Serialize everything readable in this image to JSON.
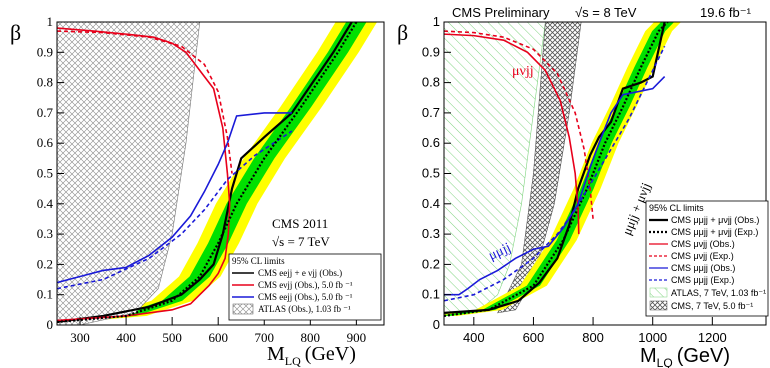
{
  "chart_data": [
    {
      "type": "line",
      "panel": "left",
      "xlabel_main": "M",
      "xlabel_sub": "LQ",
      "xlabel_unit": "(GeV)",
      "ylabel": "β",
      "xlim": [
        250,
        960
      ],
      "ylim": [
        0,
        1
      ],
      "xticks": [
        "300",
        "400",
        "500",
        "600",
        "700",
        "800",
        "900"
      ],
      "yticks": [
        "0",
        "0.1",
        "0.2",
        "0.3",
        "0.4",
        "0.5",
        "0.6",
        "0.7",
        "0.8",
        "0.9",
        "1"
      ],
      "annotation_line1": "CMS 2011",
      "annotation_line2": "√s = 7 TeV",
      "legend_title": "95% CL limits",
      "legend": [
        "CMS eejj + e νjj (Obs.)",
        "CMS eνjj (Obs.), 5.0 fb ⁻¹",
        "CMS eejj (Obs.), 5.0 fb ⁻¹",
        "ATLAS (Obs.), 1.03 fb ⁻¹"
      ],
      "series": [
        {
          "name": "CMS eejj + e νjj (Obs.)",
          "color": "#000000",
          "x": [
            250,
            350,
            450,
            520,
            560,
            590,
            610,
            630,
            650,
            700,
            760,
            850,
            890
          ],
          "y": [
            0.01,
            0.03,
            0.06,
            0.1,
            0.15,
            0.2,
            0.3,
            0.45,
            0.55,
            0.62,
            0.7,
            0.9,
            1.0
          ]
        },
        {
          "name": "CMS eνjj (Obs.), 5.0 fb ⁻¹",
          "color": "#e8001b",
          "x": [
            250,
            330,
            400,
            460,
            500,
            530,
            550,
            565,
            590,
            610,
            620,
            625,
            622,
            615,
            600,
            580,
            560,
            540,
            500,
            400,
            300,
            250
          ],
          "y": [
            0.98,
            0.97,
            0.96,
            0.95,
            0.93,
            0.9,
            0.86,
            0.83,
            0.78,
            0.65,
            0.5,
            0.4,
            0.3,
            0.22,
            0.17,
            0.13,
            0.1,
            0.07,
            0.05,
            0.03,
            0.02,
            0.015
          ]
        },
        {
          "name": "CMS eejj (Obs.), 5.0 fb ⁻¹",
          "color": "#1a1ad8",
          "x": [
            250,
            300,
            350,
            400,
            450,
            500,
            540,
            570,
            600,
            620,
            640,
            700,
            760
          ],
          "y": [
            0.14,
            0.16,
            0.18,
            0.19,
            0.23,
            0.29,
            0.36,
            0.44,
            0.53,
            0.6,
            0.69,
            0.7,
            0.7
          ]
        },
        {
          "name": "CMS eνjj (Exp.)",
          "color": "#e8001b",
          "dashed": true,
          "x": [
            250,
            350,
            450,
            520,
            570,
            600,
            620,
            630
          ],
          "y": [
            0.97,
            0.965,
            0.95,
            0.92,
            0.86,
            0.77,
            0.62,
            0.5
          ]
        },
        {
          "name": "CMS eejj (Exp.)",
          "color": "#1a1ad8",
          "dashed": true,
          "x": [
            250,
            350,
            450,
            520,
            570,
            620,
            680,
            760
          ],
          "y": [
            0.12,
            0.15,
            0.22,
            0.3,
            0.38,
            0.48,
            0.56,
            0.64
          ]
        },
        {
          "name": "CMS eejj + e νjj (Exp.)",
          "color": "#000000",
          "dashed": true,
          "x": [
            250,
            400,
            500,
            560,
            600,
            640,
            700,
            780,
            860,
            900
          ],
          "y": [
            0.01,
            0.03,
            0.08,
            0.16,
            0.27,
            0.4,
            0.55,
            0.72,
            0.9,
            1.0
          ]
        }
      ]
    },
    {
      "type": "line",
      "panel": "right",
      "title_left": "CMS Preliminary",
      "title_mid": "√s = 8 TeV",
      "title_right": "19.6 fb⁻¹",
      "xlabel_main": "M",
      "xlabel_sub": "LQ",
      "xlabel_unit": "(GeV)",
      "ylabel": "β",
      "xlim": [
        300,
        1380
      ],
      "ylim": [
        0,
        1
      ],
      "xticks": [
        "400",
        "600",
        "800",
        "1000",
        "1200"
      ],
      "yticks": [
        "0",
        "0.1",
        "0.2",
        "0.3",
        "0.4",
        "0.5",
        "0.6",
        "0.7",
        "0.8",
        "0.9",
        "1"
      ],
      "label_muvjj": "μνjj",
      "label_mumujj": "μμjj",
      "label_combined": "μμjj + μνjj",
      "legend_title": "95% CL limits",
      "legend": [
        "CMS μμjj + μνjj (Obs.)",
        "CMS μμjj + μνjj (Exp.)",
        "CMS μνjj (Obs.)",
        "CMS μνjj (Exp.)",
        "CMS μμjj (Obs.)",
        "CMS μμjj (Exp.)",
        "ATLAS, 7 TeV, 1.03 fb⁻¹",
        "CMS, 7 TeV, 5.0 fb⁻¹"
      ],
      "series": [
        {
          "name": "CMS μμjj + μνjj (Obs.)",
          "color": "#000000",
          "x": [
            300,
            450,
            550,
            620,
            680,
            720,
            750,
            790,
            820,
            860,
            900,
            960,
            1000,
            1040
          ],
          "y": [
            0.04,
            0.05,
            0.08,
            0.14,
            0.22,
            0.33,
            0.45,
            0.56,
            0.62,
            0.67,
            0.78,
            0.8,
            0.82,
            1.0
          ]
        },
        {
          "name": "CMS μμjj + μνjj (Exp.)",
          "color": "#000000",
          "dashed": true,
          "x": [
            300,
            450,
            600,
            700,
            780,
            840,
            900,
            960,
            1020,
            1050
          ],
          "y": [
            0.03,
            0.05,
            0.13,
            0.28,
            0.45,
            0.6,
            0.72,
            0.85,
            0.97,
            1.0
          ]
        },
        {
          "name": "CMS μνjj (Obs.)",
          "color": "#e8001b",
          "x": [
            300,
            400,
            500,
            580,
            640,
            690,
            720,
            740,
            750,
            752
          ],
          "y": [
            0.96,
            0.955,
            0.94,
            0.9,
            0.84,
            0.74,
            0.62,
            0.5,
            0.38,
            0.3
          ]
        },
        {
          "name": "CMS μνjj (Exp.)",
          "color": "#e8001b",
          "dashed": true,
          "x": [
            300,
            400,
            500,
            600,
            680,
            740,
            770,
            790,
            800
          ],
          "y": [
            0.97,
            0.965,
            0.95,
            0.91,
            0.83,
            0.7,
            0.58,
            0.45,
            0.35
          ]
        },
        {
          "name": "CMS μμjj (Obs.)",
          "color": "#1a1ad8",
          "x": [
            300,
            350,
            380,
            420,
            480,
            540,
            600,
            650,
            700,
            750,
            790,
            820,
            860,
            900,
            950,
            1000,
            1040
          ],
          "y": [
            0.1,
            0.1,
            0.12,
            0.15,
            0.18,
            0.22,
            0.25,
            0.26,
            0.32,
            0.4,
            0.52,
            0.6,
            0.7,
            0.76,
            0.77,
            0.78,
            0.82
          ]
        },
        {
          "name": "CMS μμjj (Exp.)",
          "color": "#1a1ad8",
          "dashed": true,
          "x": [
            300,
            400,
            500,
            600,
            680,
            740,
            800,
            860,
            920,
            980,
            1040
          ],
          "y": [
            0.08,
            0.1,
            0.15,
            0.22,
            0.3,
            0.38,
            0.48,
            0.58,
            0.68,
            0.8,
            0.92
          ]
        }
      ]
    }
  ]
}
